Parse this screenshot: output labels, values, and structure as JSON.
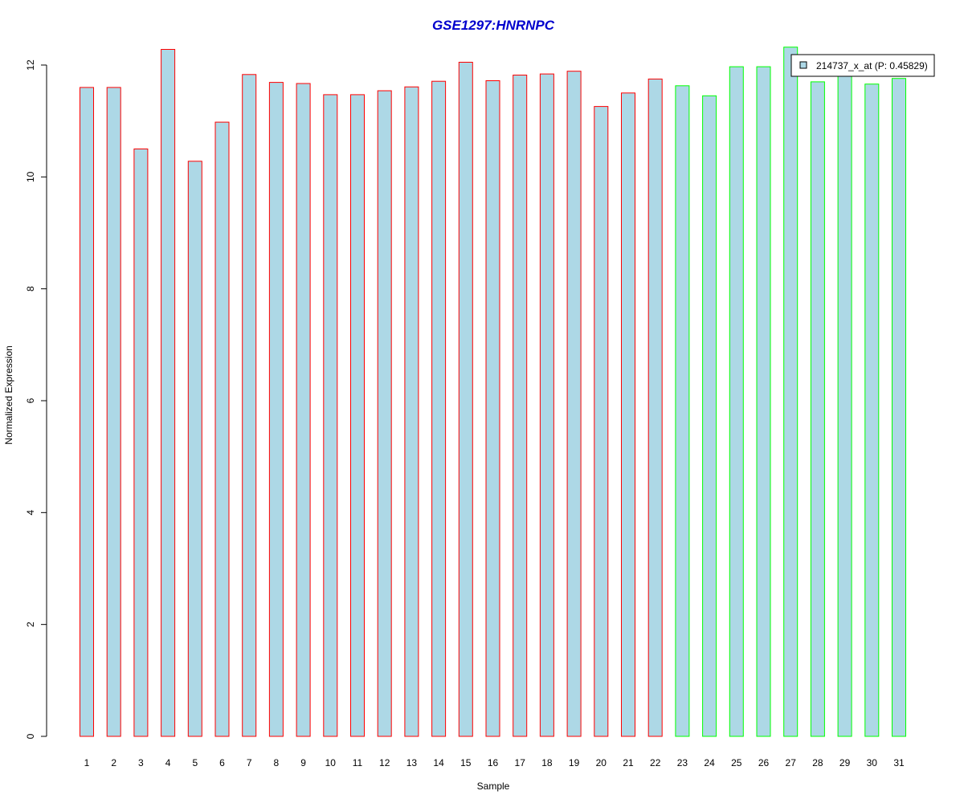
{
  "chart_data": {
    "type": "bar",
    "title": "GSE1297:HNRNPC",
    "xlabel": "Sample",
    "ylabel": "Normalized Expression",
    "categories": [
      "1",
      "2",
      "3",
      "4",
      "5",
      "6",
      "7",
      "8",
      "9",
      "10",
      "11",
      "12",
      "13",
      "14",
      "15",
      "16",
      "17",
      "18",
      "19",
      "20",
      "21",
      "22",
      "23",
      "24",
      "25",
      "26",
      "27",
      "28",
      "29",
      "30",
      "31"
    ],
    "values": [
      11.6,
      11.6,
      10.5,
      12.28,
      10.28,
      10.98,
      11.83,
      11.69,
      11.67,
      11.47,
      11.47,
      11.54,
      11.61,
      11.71,
      12.05,
      11.72,
      11.82,
      11.84,
      11.89,
      11.26,
      11.5,
      11.75,
      11.63,
      11.45,
      11.97,
      11.97,
      12.32,
      11.7,
      11.87,
      11.66,
      11.76
    ],
    "group": [
      "a",
      "a",
      "a",
      "a",
      "a",
      "a",
      "a",
      "a",
      "a",
      "a",
      "a",
      "a",
      "a",
      "a",
      "a",
      "a",
      "a",
      "a",
      "a",
      "a",
      "a",
      "a",
      "b",
      "b",
      "b",
      "b",
      "b",
      "b",
      "b",
      "b",
      "b"
    ],
    "ylim": [
      0,
      12
    ],
    "yticks": [
      0,
      2,
      4,
      6,
      8,
      10,
      12
    ],
    "grid": false,
    "legend": {
      "position": "top-right",
      "label": "214737_x_at (P: 0.45829)"
    },
    "colors": {
      "bar_fill": "#ADD8E6",
      "group_a_border": "#FF0000",
      "group_b_border": "#00FF00",
      "title": "#0000CD"
    }
  }
}
